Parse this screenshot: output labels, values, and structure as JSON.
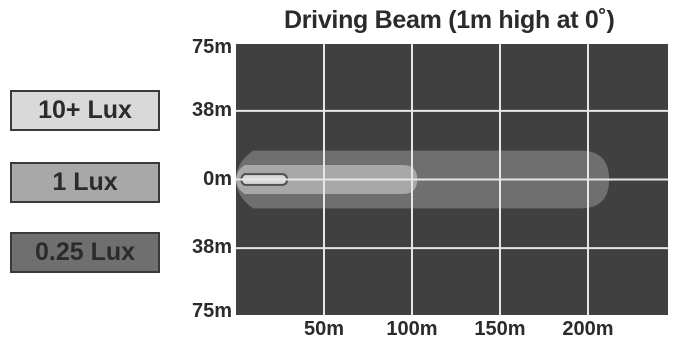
{
  "chart_data": {
    "type": "heatmap",
    "title": "Driving Beam (1m high at 0˚)",
    "legend": [
      {
        "label": "10+ Lux",
        "color": "#d9d9d9"
      },
      {
        "label": "1 Lux",
        "color": "#a8a8a8"
      },
      {
        "label": "0.25 Lux",
        "color": "#6f6f6f"
      }
    ],
    "background_color": "#404040",
    "grid_color": "#e6e6e6",
    "x_ticks": [
      "50m",
      "100m",
      "150m",
      "200m"
    ],
    "x_tick_values": [
      50,
      100,
      150,
      200
    ],
    "y_ticks": [
      "75m",
      "38m",
      "0m",
      "38m",
      "75m"
    ],
    "y_tick_values": [
      75,
      38,
      0,
      -38,
      -75
    ],
    "xlim": [
      0,
      250
    ],
    "ylim": [
      -75,
      75
    ],
    "zones": [
      {
        "label": "0.25 Lux",
        "x_start": 0,
        "x_end": 212,
        "y_half_width": 16
      },
      {
        "label": "1 Lux",
        "x_start": 0,
        "x_end": 103,
        "y_half_width": 8
      },
      {
        "label": "10+ Lux",
        "x_start": 3,
        "x_end": 29,
        "y_half_width": 3
      }
    ]
  }
}
